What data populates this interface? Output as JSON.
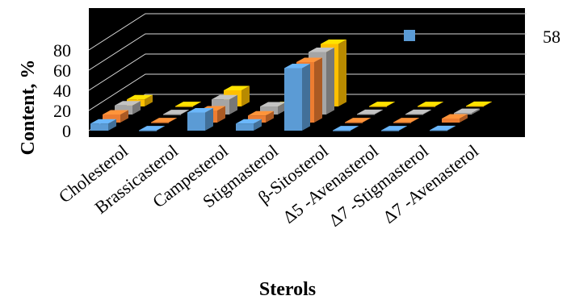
{
  "chart_data": {
    "type": "bar",
    "subtype": "3d-clustered-column",
    "xlabel": "Sterols",
    "ylabel": "Content, %",
    "ylim": [
      0,
      80
    ],
    "yticks": [
      "0",
      "20",
      "40",
      "60",
      "80"
    ],
    "side_label": "58",
    "background": "#000000",
    "grid": true,
    "legend": "top-right",
    "categories": [
      "Cholesterol",
      "Brassicasterol",
      "Campesterol",
      "Stigmasterol",
      "β-Sitosterol",
      "Δ5 -Avenasterol",
      "Δ7 -Stigmasterol",
      "Δ7 -Avenasterol"
    ],
    "series": [
      {
        "color": "#5b9bd5",
        "values": [
          7,
          0.3,
          18,
          7,
          62,
          0.3,
          0.3,
          0.5
        ]
      },
      {
        "color": "#ed7d31",
        "values": [
          8,
          0.3,
          12,
          7,
          60,
          0.3,
          0.3,
          4
        ]
      },
      {
        "color": "#a5a5a5",
        "values": [
          9,
          0.3,
          15,
          8,
          62,
          0.5,
          0.5,
          1.5
        ]
      },
      {
        "color": "#ffc000",
        "values": [
          7,
          0.3,
          16,
          0.3,
          62,
          0.3,
          0.3,
          0.5
        ]
      }
    ]
  }
}
